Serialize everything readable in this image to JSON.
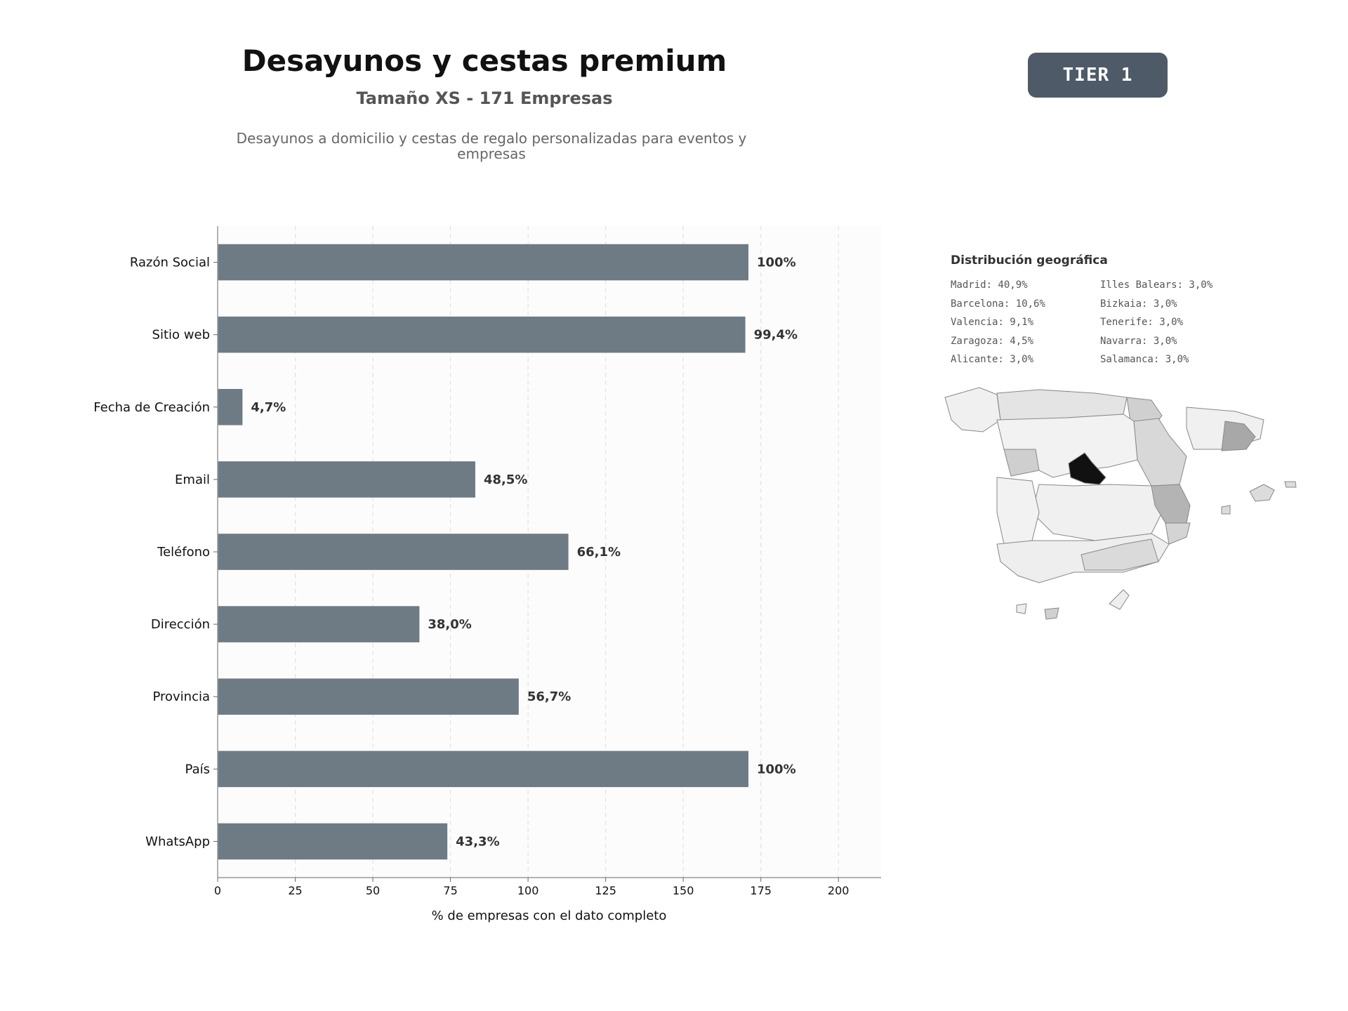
{
  "header": {
    "title": "Desayunos y cestas premium",
    "subtitle": "Tamaño XS - 171 Empresas",
    "description": "Desayunos a domicilio y cestas de regalo personalizadas para eventos y empresas",
    "badge": "TIER 1"
  },
  "chart_data": {
    "type": "bar",
    "orientation": "horizontal",
    "categories": [
      "Razón Social",
      "Sitio web",
      "Fecha de Creación",
      "Email",
      "Teléfono",
      "Dirección",
      "Provincia",
      "País",
      "WhatsApp"
    ],
    "values": [
      171,
      170,
      8,
      83,
      113,
      65,
      97,
      171,
      74
    ],
    "data_labels": [
      "100%",
      "99,4%",
      "4,7%",
      "48,5%",
      "66,1%",
      "38,0%",
      "56,7%",
      "100%",
      "43,3%"
    ],
    "xlabel": "% de empresas con el dato completo",
    "xlim": [
      0,
      213.75
    ],
    "xticks": [
      0,
      25,
      50,
      75,
      100,
      125,
      150,
      175,
      200
    ],
    "grid": "vertical-dashed",
    "bar_color": "#6e7a84"
  },
  "geo": {
    "title": "Distribución geográfica",
    "items": [
      "Madrid: 40,9%",
      "Barcelona: 10,6%",
      "Valencia: 9,1%",
      "Zaragoza: 4,5%",
      "Alicante: 3,0%",
      "Illes Balears: 3,0%",
      "Bizkaia: 3,0%",
      "Tenerife: 3,0%",
      "Navarra: 3,0%",
      "Salamanca: 3,0%"
    ]
  }
}
